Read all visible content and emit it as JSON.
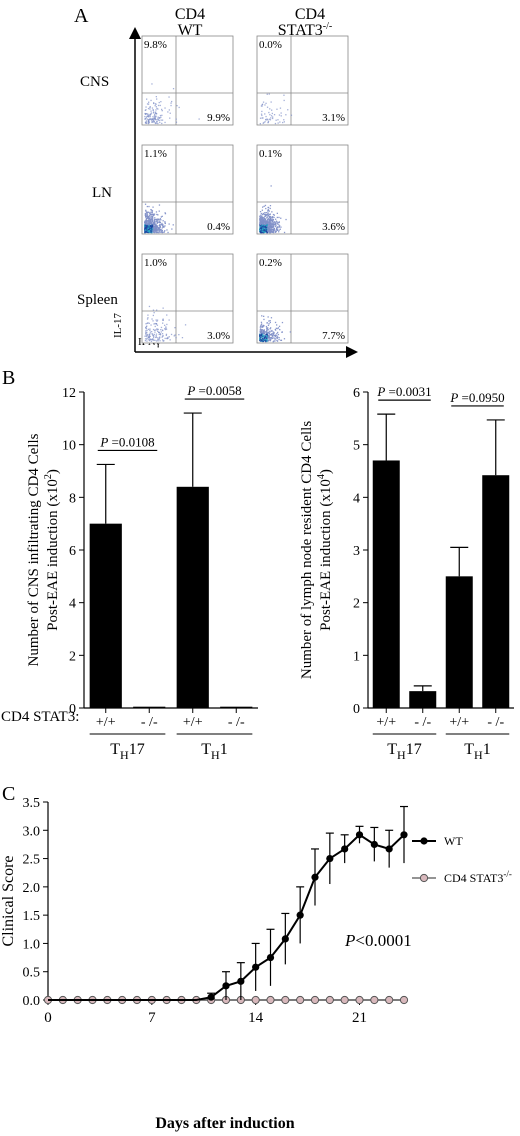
{
  "panel_a": {
    "letter": "A",
    "col1": {
      "line1": "CD4",
      "line2": "WT"
    },
    "col2": {
      "line1": "CD4",
      "line2": "STAT3",
      "sup": "-/-"
    },
    "row_labels": [
      "CNS",
      "LN",
      "Spleen"
    ],
    "y_axis_label": "IL-17",
    "x_axis_label": "IFNγ",
    "plots": [
      [
        {
          "tl": "9.8%",
          "br": "9.9%",
          "density": "low"
        },
        {
          "tl": "0.0%",
          "br": "3.1%",
          "density": "very-low"
        }
      ],
      [
        {
          "tl": "1.1%",
          "br": "0.4%",
          "density": "high"
        },
        {
          "tl": "0.1%",
          "br": "3.6%",
          "density": "high"
        }
      ],
      [
        {
          "tl": "1.0%",
          "br": "3.0%",
          "density": "low"
        },
        {
          "tl": "0.2%",
          "br": "7.7%",
          "density": "medium"
        }
      ]
    ],
    "colors": {
      "dot_low": "#7f8fc8",
      "dot_high": "#2aa7c4",
      "dot_core": "#1f3fa0"
    }
  },
  "panel_b": {
    "letter": "B",
    "row_prefix": "CD4 STAT3:",
    "tick_categories": [
      "+/+",
      "- /-",
      "+/+",
      "- /-"
    ],
    "groups": [
      {
        "main": "T",
        "sub": "H",
        "after": "17"
      },
      {
        "main": "T",
        "sub": "H",
        "after": "1"
      }
    ],
    "bar_color": "#000000"
  },
  "panel_c": {
    "letter": "C",
    "legend": [
      {
        "name": "WT"
      },
      {
        "name": "CD4 STAT3",
        "sup": "-/-"
      }
    ],
    "annotation": {
      "italic": "P",
      "rest": "<0.0001"
    },
    "colors": {
      "wt": "#000000",
      "ko_fill": "#d8b8bc",
      "ko_stroke": "#555555"
    }
  },
  "chart_data": [
    {
      "type": "bar",
      "ylabel": [
        "Number of CNS infiltrating CD4 Cells",
        "Post-EAE induction (x10",
        "2",
        ")"
      ],
      "ylim": [
        0,
        12
      ],
      "yticks": [
        0,
        2,
        4,
        6,
        8,
        10,
        12
      ],
      "categories": [
        "+/+",
        "- /-",
        "+/+",
        "- /-"
      ],
      "values": [
        7.0,
        0.05,
        8.4,
        0.05
      ],
      "errors": [
        2.25,
        0,
        2.8,
        0
      ],
      "pvalues": [
        {
          "italic": "P",
          "text": " =0.0108"
        },
        {
          "italic": "P",
          "text": " =0.0058"
        }
      ]
    },
    {
      "type": "bar",
      "ylabel": [
        "Number of lymph node resident CD4 Cells",
        "Post-EAE induction (x10",
        "4",
        ")"
      ],
      "ylim": [
        0,
        6
      ],
      "yticks": [
        0,
        1,
        2,
        3,
        4,
        5,
        6
      ],
      "categories": [
        "+/+",
        "- /-",
        "+/+",
        "- /-"
      ],
      "values": [
        4.7,
        0.32,
        2.5,
        4.42
      ],
      "errors": [
        0.88,
        0.1,
        0.55,
        1.05
      ],
      "pvalues": [
        {
          "italic": "P",
          "text": " =0.0031"
        },
        {
          "italic": "P",
          "text": " =0.0950"
        }
      ]
    },
    {
      "type": "line",
      "xlabel": "Days after induction",
      "ylabel": "Clinical Score",
      "xlim": [
        0,
        24
      ],
      "ylim": [
        0,
        3.5
      ],
      "xticks": [
        0,
        7,
        14,
        21
      ],
      "yticks": [
        "0.0",
        "0.5",
        "1.0",
        "1.5",
        "2.0",
        "2.5",
        "3.0",
        "3.5"
      ],
      "series": [
        {
          "name": "WT",
          "x": [
            0,
            1,
            2,
            3,
            4,
            5,
            6,
            7,
            8,
            9,
            10,
            11,
            12,
            13,
            14,
            15,
            16,
            17,
            18,
            19,
            20,
            21,
            22,
            23,
            24
          ],
          "y": [
            0,
            0,
            0,
            0,
            0,
            0,
            0,
            0,
            0,
            0,
            0,
            0.05,
            0.25,
            0.33,
            0.58,
            0.75,
            1.08,
            1.5,
            2.17,
            2.5,
            2.67,
            2.92,
            2.75,
            2.67,
            2.92
          ],
          "err": [
            0,
            0,
            0,
            0,
            0,
            0,
            0,
            0,
            0,
            0,
            0,
            0.07,
            0.25,
            0.33,
            0.42,
            0.5,
            0.45,
            0.5,
            0.5,
            0.45,
            0.25,
            0.15,
            0.3,
            0.33,
            0.5
          ]
        },
        {
          "name": "CD4 STAT3-/-",
          "x": [
            0,
            1,
            2,
            3,
            4,
            5,
            6,
            7,
            8,
            9,
            10,
            11,
            12,
            13,
            14,
            15,
            16,
            17,
            18,
            19,
            20,
            21,
            22,
            23,
            24
          ],
          "y": [
            0,
            0,
            0,
            0,
            0,
            0,
            0,
            0,
            0,
            0,
            0,
            0,
            0,
            0,
            0,
            0,
            0,
            0,
            0,
            0,
            0,
            0,
            0,
            0,
            0
          ]
        }
      ]
    }
  ]
}
